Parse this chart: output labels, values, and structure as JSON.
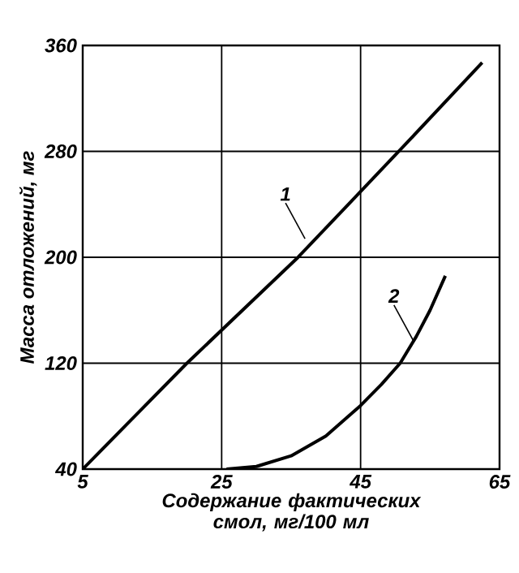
{
  "chart_data": {
    "type": "line",
    "xlabel": "Содержание фактических смол, мг/100 мл",
    "ylabel": "Масса отложений, мг",
    "xlim": [
      5,
      65
    ],
    "ylim": [
      40,
      360
    ],
    "xticks": [
      5,
      25,
      45,
      65
    ],
    "yticks": [
      40,
      120,
      200,
      280,
      360
    ],
    "grid": true,
    "series": [
      {
        "color": "#000000",
        "x": [
          5,
          20,
          36,
          50.5,
          62.5
        ],
        "values": [
          40,
          120,
          200,
          280,
          347
        ]
      },
      {
        "color": "#000000",
        "x": [
          25.7,
          30,
          35,
          40,
          45,
          48,
          50.7,
          53,
          55,
          57.2
        ],
        "values": [
          40,
          42,
          50,
          65,
          88,
          104,
          120,
          140,
          160,
          186
        ]
      }
    ],
    "annotations": [
      {
        "text": "1",
        "x": 37,
        "y": 214
      },
      {
        "text": "2",
        "x": 52.6,
        "y": 137
      }
    ]
  }
}
